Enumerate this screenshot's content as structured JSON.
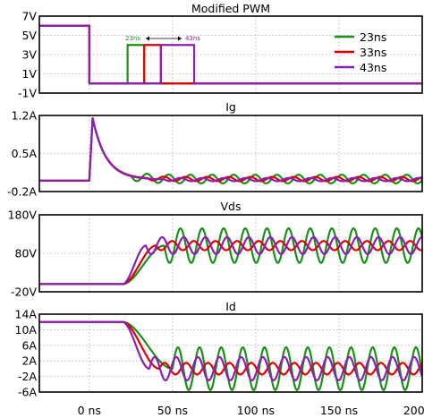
{
  "chart_data": {
    "type": "line",
    "xaxis": {
      "unit": "ns",
      "range": [
        -30,
        200
      ],
      "ticks": [
        "0 ns",
        "50 ns",
        "100 ns",
        "150 ns",
        "200 ns"
      ],
      "tick_values": [
        0,
        50,
        100,
        150,
        200
      ]
    },
    "grid": true,
    "colors": {
      "23ns": "#1a8f1a",
      "33ns": "#e00000",
      "43ns": "#8a1fb0"
    },
    "legend": {
      "placement": "right",
      "entries": [
        "23ns",
        "33ns",
        "43ns"
      ]
    },
    "annotation": {
      "left": "23ns",
      "right": "43ns"
    },
    "panels": [
      {
        "title": "Modified PWM",
        "ylim": [
          -1,
          7
        ],
        "yticks": [
          "7V",
          "5V",
          "3V",
          "1V",
          "-1V"
        ],
        "ytick_values": [
          7,
          5,
          3,
          1,
          -1
        ],
        "series": [
          {
            "name": "23ns",
            "high": 6,
            "low": 0,
            "drop_x": 0,
            "pulse": [
              23,
              33
            ],
            "pulse_level": 4
          },
          {
            "name": "33ns",
            "high": 6,
            "low": 0,
            "drop_x": 0,
            "pulse": [
              33,
              43
            ],
            "pulse_level": 4
          },
          {
            "name": "43ns",
            "high": 6,
            "low": 0,
            "drop_x": 0,
            "pulse": [
              43,
              63
            ],
            "pulse_level": 4
          }
        ]
      },
      {
        "title": "Ig",
        "ylim": [
          -0.2,
          1.2
        ],
        "yticks": [
          "1.2A",
          "0.5A",
          "-0.2A"
        ],
        "ytick_values": [
          1.2,
          0.5,
          -0.2
        ],
        "series": [
          {
            "name": "23ns",
            "base": 0,
            "onset": 0,
            "peak": 1.15,
            "decay": 8,
            "settle": 0.03,
            "ring_start": 25,
            "ring_amp": 0.08,
            "ring_period": 13,
            "ring_decay": 0
          },
          {
            "name": "33ns",
            "base": 0,
            "onset": 0,
            "peak": 1.15,
            "decay": 8,
            "settle": 0.03,
            "ring_start": 35,
            "ring_amp": 0.04,
            "ring_period": 13,
            "ring_decay": 0
          },
          {
            "name": "43ns",
            "base": 0,
            "onset": 0,
            "peak": 1.15,
            "decay": 8,
            "settle": 0.02,
            "ring_start": 45,
            "ring_amp": 0.03,
            "ring_period": 13,
            "ring_decay": 0
          }
        ]
      },
      {
        "title": "Vds",
        "ylim": [
          -20,
          180
        ],
        "yticks": [
          "180V",
          "80V",
          "-20V"
        ],
        "ytick_values": [
          180,
          80,
          -20
        ],
        "series": [
          {
            "name": "23ns",
            "base": 0,
            "rise_start": 20,
            "rise_end": 45,
            "level": 100,
            "ring_amp": 45,
            "ring_period": 13,
            "ring_decay": 0
          },
          {
            "name": "33ns",
            "base": 0,
            "rise_start": 20,
            "rise_end": 40,
            "level": 100,
            "ring_amp": 12,
            "ring_period": 13,
            "ring_decay": 0
          },
          {
            "name": "43ns",
            "base": 0,
            "rise_start": 20,
            "rise_end": 34,
            "level": 100,
            "ring_amp": 22,
            "ring_period": 13,
            "ring_decay": 0
          }
        ]
      },
      {
        "title": "Id",
        "ylim": [
          -6,
          14
        ],
        "yticks": [
          "14A",
          "10A",
          "6A",
          "2A",
          "-2A",
          "-6A"
        ],
        "ytick_values": [
          14,
          10,
          6,
          2,
          -2,
          -6
        ],
        "series": [
          {
            "name": "23ns",
            "base": 12,
            "fall_start": 20,
            "fall_end": 50,
            "level": 0,
            "ring_amp": 5.5,
            "ring_period": 13,
            "ring_decay": 0
          },
          {
            "name": "33ns",
            "base": 12,
            "fall_start": 20,
            "fall_end": 42,
            "level": 0,
            "ring_amp": 1.5,
            "ring_period": 13,
            "ring_decay": 0
          },
          {
            "name": "43ns",
            "base": 12,
            "fall_start": 20,
            "fall_end": 36,
            "level": 0,
            "ring_amp": 3,
            "ring_period": 13,
            "ring_decay": 0
          }
        ]
      }
    ]
  }
}
